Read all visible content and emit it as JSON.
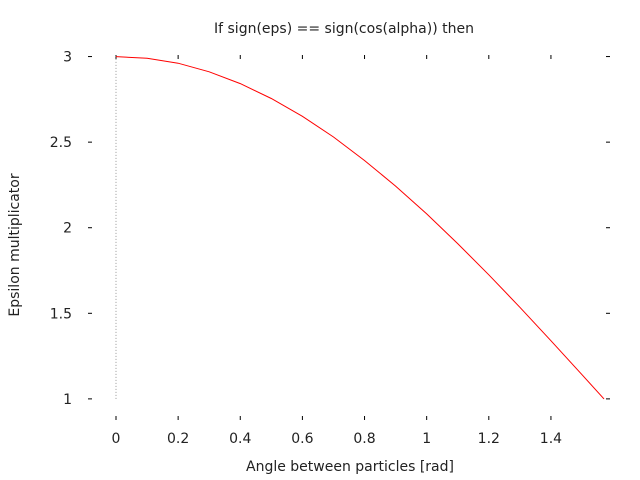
{
  "chart_data": {
    "type": "line",
    "title": "If sign(eps) == sign(cos(alpha)) then",
    "xlabel": "Angle between particles [rad]",
    "ylabel": "Epsilon multiplicator",
    "xlim": [
      0,
      1.5708
    ],
    "ylim": [
      0.9,
      3.05
    ],
    "xticks": [
      0,
      0.2,
      0.4,
      0.6,
      0.8,
      1,
      1.2,
      1.4
    ],
    "xtick_labels": [
      "0",
      "0.2",
      "0.4",
      "0.6",
      "0.8",
      "1",
      "1.2",
      "1.4"
    ],
    "yticks": [
      1,
      1.5,
      2,
      2.5,
      3
    ],
    "ytick_labels": [
      "1",
      "1.5",
      "2",
      "2.5",
      "3"
    ],
    "grid": false,
    "series": [
      {
        "color": "#ff0000",
        "x": [
          0,
          0.1,
          0.2,
          0.3,
          0.4,
          0.5,
          0.6,
          0.7,
          0.8,
          0.9,
          1.0,
          1.1,
          1.2,
          1.3,
          1.4,
          1.5,
          1.5708
        ],
        "y": [
          3.0,
          2.99,
          2.961,
          2.911,
          2.842,
          2.755,
          2.651,
          2.53,
          2.393,
          2.243,
          2.081,
          1.907,
          1.725,
          1.535,
          1.34,
          1.141,
          1.0
        ]
      }
    ],
    "vline": {
      "x": 0,
      "from": 1,
      "to": 3,
      "style": "dotted",
      "color": "#999999"
    }
  }
}
